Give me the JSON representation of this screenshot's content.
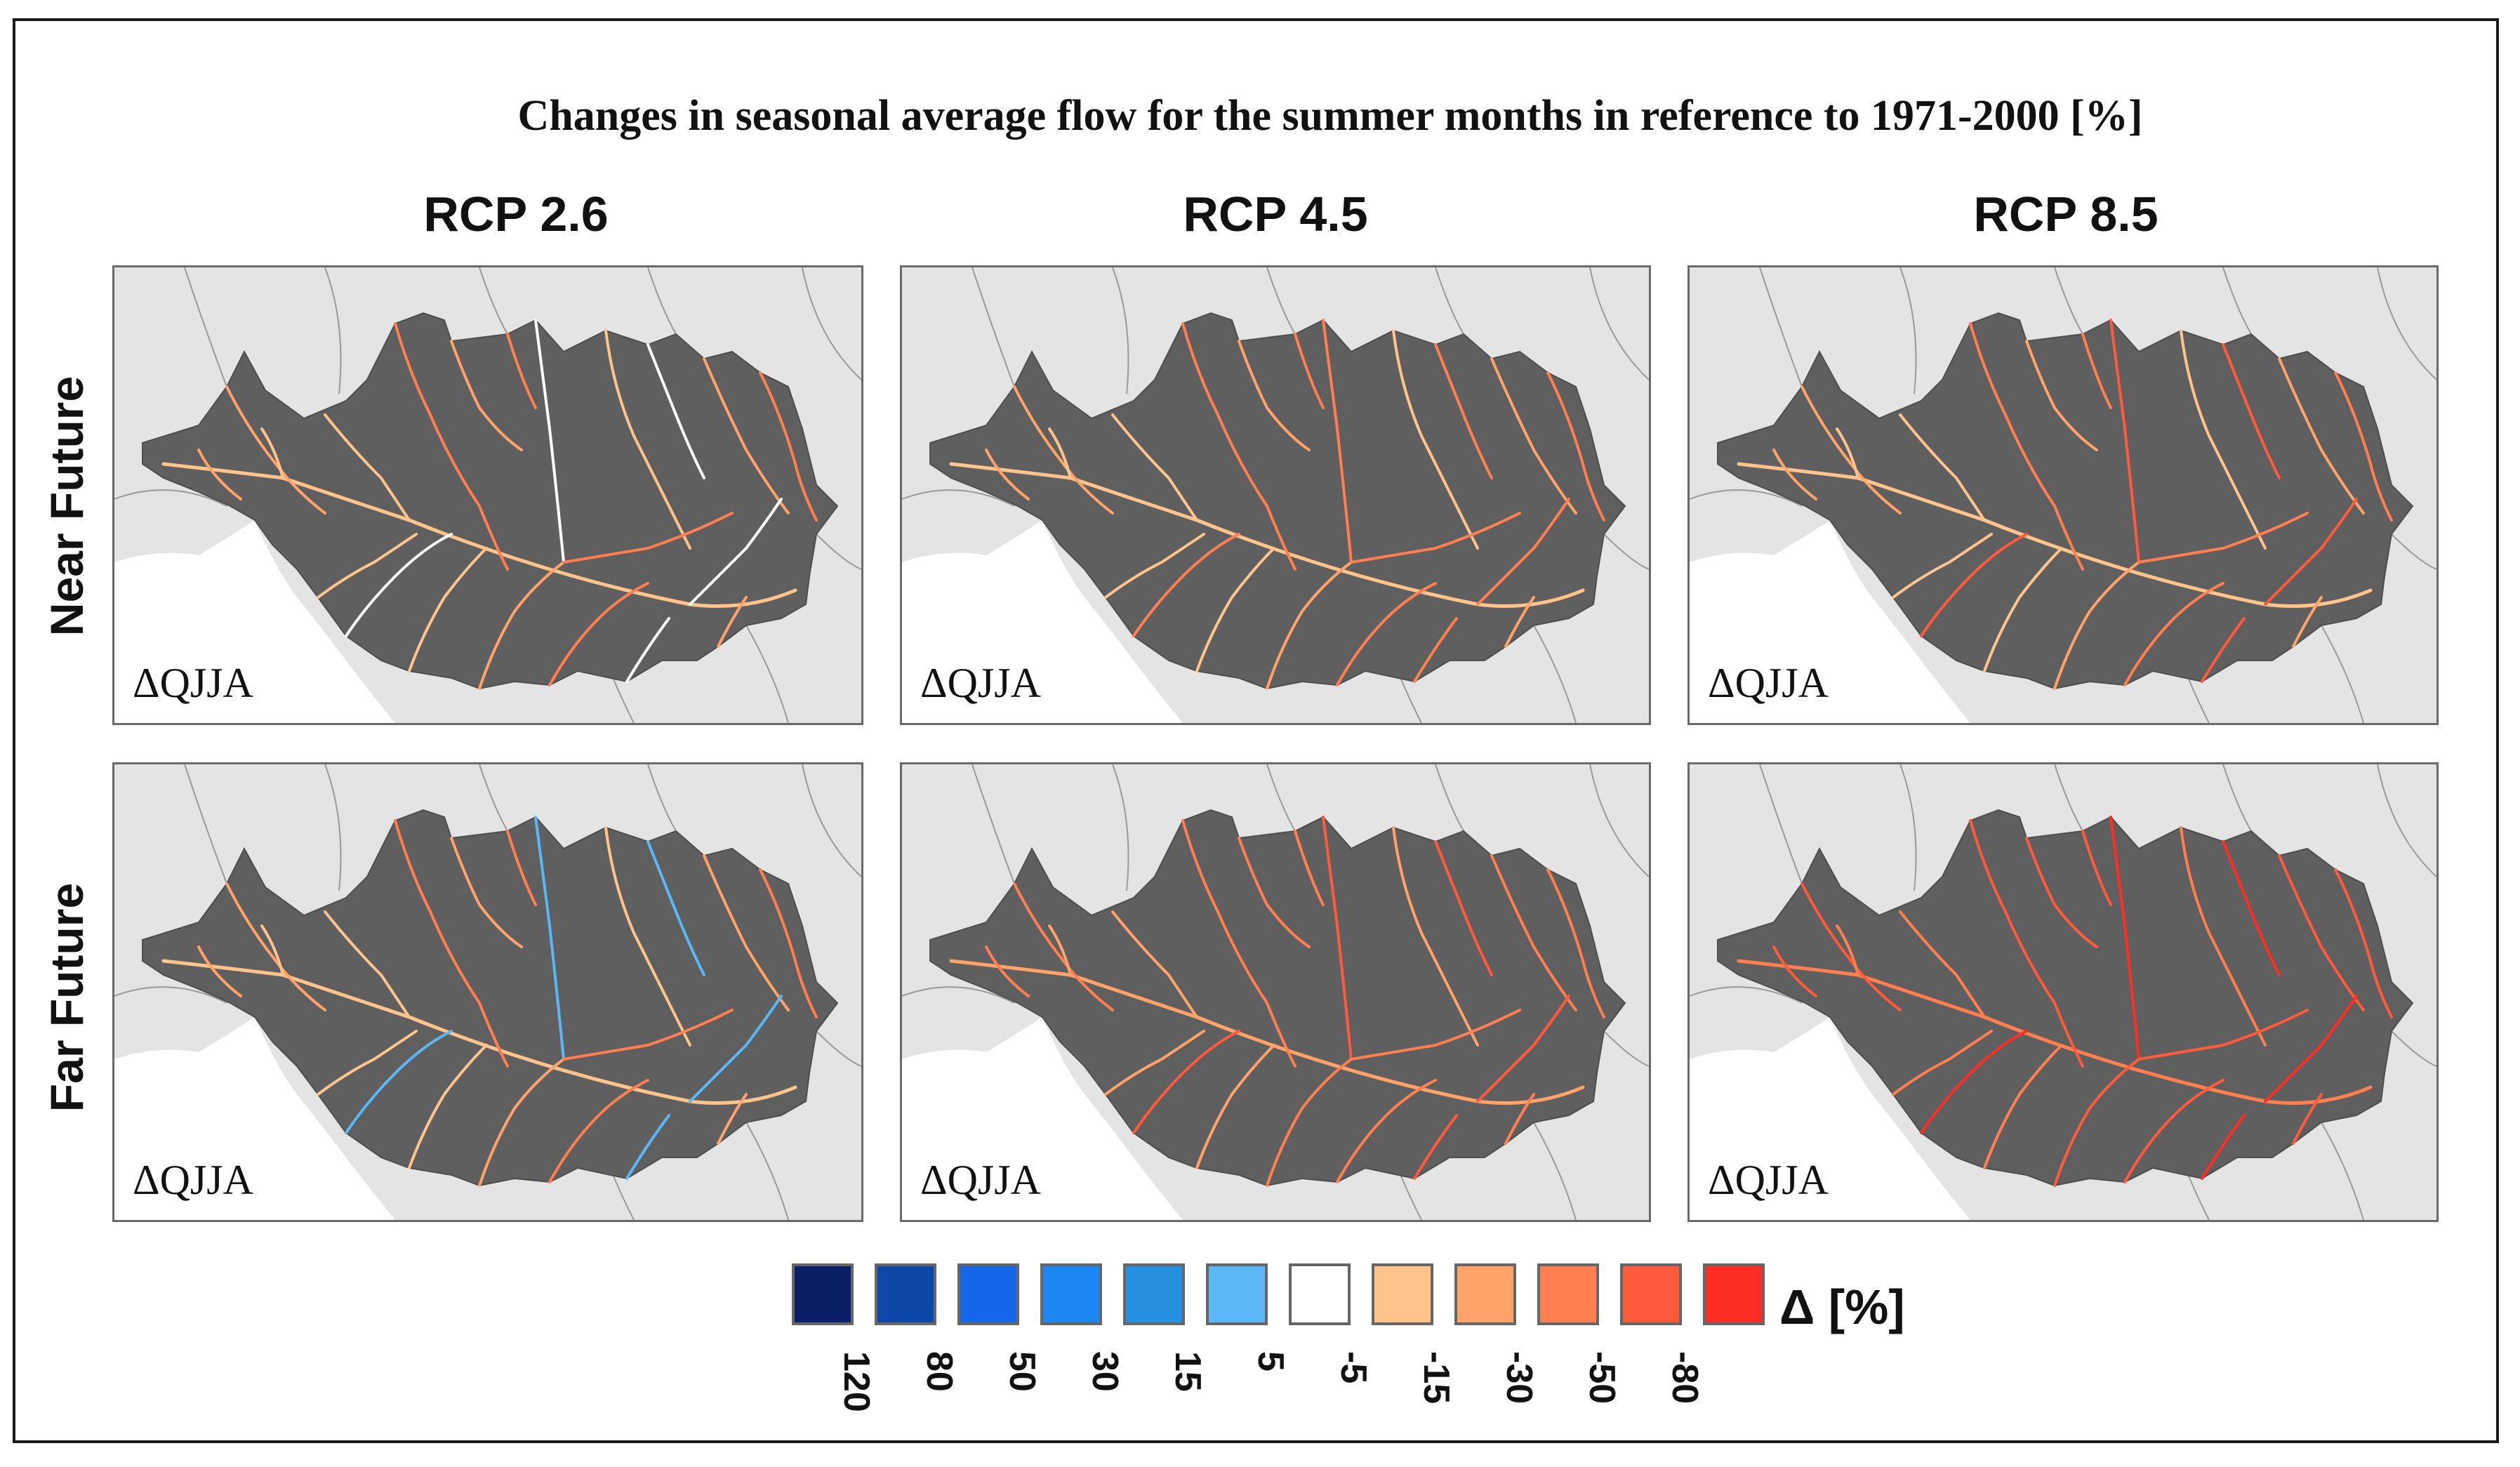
{
  "title": "Changes in seasonal average flow for the summer months in reference to 1971-2000 [%]",
  "columns": [
    "RCP 2.6",
    "RCP 4.5",
    "RCP 8.5"
  ],
  "rows": [
    "Near Future",
    "Far Future"
  ],
  "panel_label": "ΔQJJA",
  "panels": [
    {
      "row": "Near Future",
      "scenario": "RCP 2.6",
      "label": "ΔQJJA"
    },
    {
      "row": "Near Future",
      "scenario": "RCP 4.5",
      "label": "ΔQJJA"
    },
    {
      "row": "Near Future",
      "scenario": "RCP 8.5",
      "label": "ΔQJJA"
    },
    {
      "row": "Far Future",
      "scenario": "RCP 2.6",
      "label": "ΔQJJA"
    },
    {
      "row": "Far Future",
      "scenario": "RCP 4.5",
      "label": "ΔQJJA"
    },
    {
      "row": "Far Future",
      "scenario": "RCP 8.5",
      "label": "ΔQJJA"
    }
  ],
  "legend": {
    "unit": "Δ [%]",
    "ticks": [
      "120",
      "80",
      "50",
      "30",
      "15",
      "5",
      "-5",
      "-15",
      "-30",
      "-50",
      "-80"
    ],
    "colors": [
      "#0a1f66",
      "#0d47a8",
      "#1566e8",
      "#1c87f2",
      "#2590e0",
      "#5bb7f5",
      "#ffffff",
      "#ffc48c",
      "#ffa36a",
      "#ff7f50",
      "#ff5a3c",
      "#ff2e24"
    ]
  },
  "colors": {
    "basin": "#5f5f5f",
    "land": "#e4e4e4",
    "sea": "#ffffff",
    "border": "#9a9a9a"
  }
}
